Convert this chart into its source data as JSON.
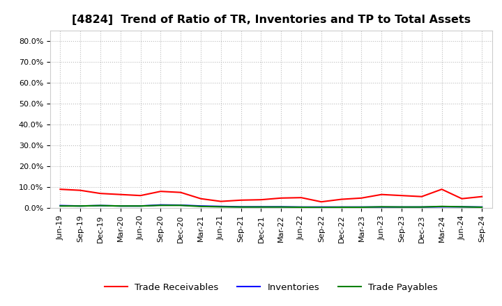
{
  "title": "[4824]  Trend of Ratio of TR, Inventories and TP to Total Assets",
  "x_labels": [
    "Jun-19",
    "Sep-19",
    "Dec-19",
    "Mar-20",
    "Jun-20",
    "Sep-20",
    "Dec-20",
    "Mar-21",
    "Jun-21",
    "Sep-21",
    "Dec-21",
    "Mar-22",
    "Jun-22",
    "Sep-22",
    "Dec-22",
    "Mar-23",
    "Jun-23",
    "Sep-23",
    "Dec-23",
    "Mar-24",
    "Jun-24",
    "Sep-24"
  ],
  "trade_receivables": [
    0.09,
    0.085,
    0.07,
    0.065,
    0.06,
    0.08,
    0.075,
    0.045,
    0.032,
    0.038,
    0.04,
    0.048,
    0.05,
    0.03,
    0.042,
    0.048,
    0.065,
    0.06,
    0.055,
    0.09,
    0.045,
    0.055
  ],
  "inventories": [
    0.012,
    0.01,
    0.012,
    0.01,
    0.01,
    0.015,
    0.014,
    0.01,
    0.008,
    0.006,
    0.006,
    0.006,
    0.005,
    0.005,
    0.005,
    0.005,
    0.005,
    0.005,
    0.005,
    0.006,
    0.006,
    0.005
  ],
  "trade_payables": [
    0.01,
    0.01,
    0.012,
    0.01,
    0.01,
    0.013,
    0.013,
    0.008,
    0.006,
    0.005,
    0.005,
    0.005,
    0.004,
    0.003,
    0.004,
    0.004,
    0.006,
    0.005,
    0.005,
    0.008,
    0.006,
    0.004
  ],
  "tr_color": "#ff0000",
  "inv_color": "#0000ff",
  "tp_color": "#008000",
  "ylim": [
    0.0,
    0.85
  ],
  "yticks": [
    0.0,
    0.1,
    0.2,
    0.3,
    0.4,
    0.5,
    0.6,
    0.7,
    0.8
  ],
  "legend_labels": [
    "Trade Receivables",
    "Inventories",
    "Trade Payables"
  ],
  "bg_color": "#ffffff",
  "plot_bg_color": "#ffffff",
  "grid_color": "#bbbbbb",
  "title_fontsize": 11.5,
  "tick_fontsize": 8,
  "legend_fontsize": 9.5
}
